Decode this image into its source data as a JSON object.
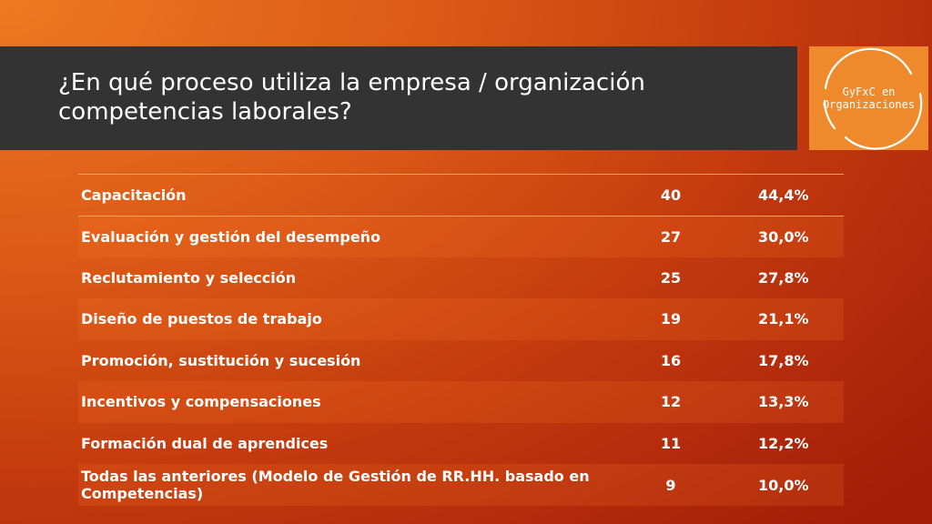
{
  "slide": {
    "title_line1": "¿En qué proceso utiliza la empresa / organización",
    "title_line2": "competencias laborales?"
  },
  "logo": {
    "line1": "GyFxC en",
    "line2": "Organizaciones"
  },
  "colors": {
    "title_band": "#333333",
    "logo_bg": "#ee8a2c",
    "text": "#ffffff"
  },
  "table": {
    "rows": [
      {
        "label": "Capacitación",
        "count": "40",
        "percent": "44,4%"
      },
      {
        "label": "Evaluación y gestión del desempeño",
        "count": "27",
        "percent": "30,0%"
      },
      {
        "label": "Reclutamiento y selección",
        "count": "25",
        "percent": "27,8%"
      },
      {
        "label": "Diseño de puestos de trabajo",
        "count": "19",
        "percent": "21,1%"
      },
      {
        "label": "Promoción, sustitución y sucesión",
        "count": "16",
        "percent": "17,8%"
      },
      {
        "label": "Incentivos y compensaciones",
        "count": "12",
        "percent": "13,3%"
      },
      {
        "label": "Formación dual de aprendices",
        "count": "11",
        "percent": "12,2%"
      },
      {
        "label": "Todas las anteriores (Modelo de Gestión de RR.HH. basado en Competencias)",
        "count": "9",
        "percent": "10,0%"
      }
    ]
  }
}
